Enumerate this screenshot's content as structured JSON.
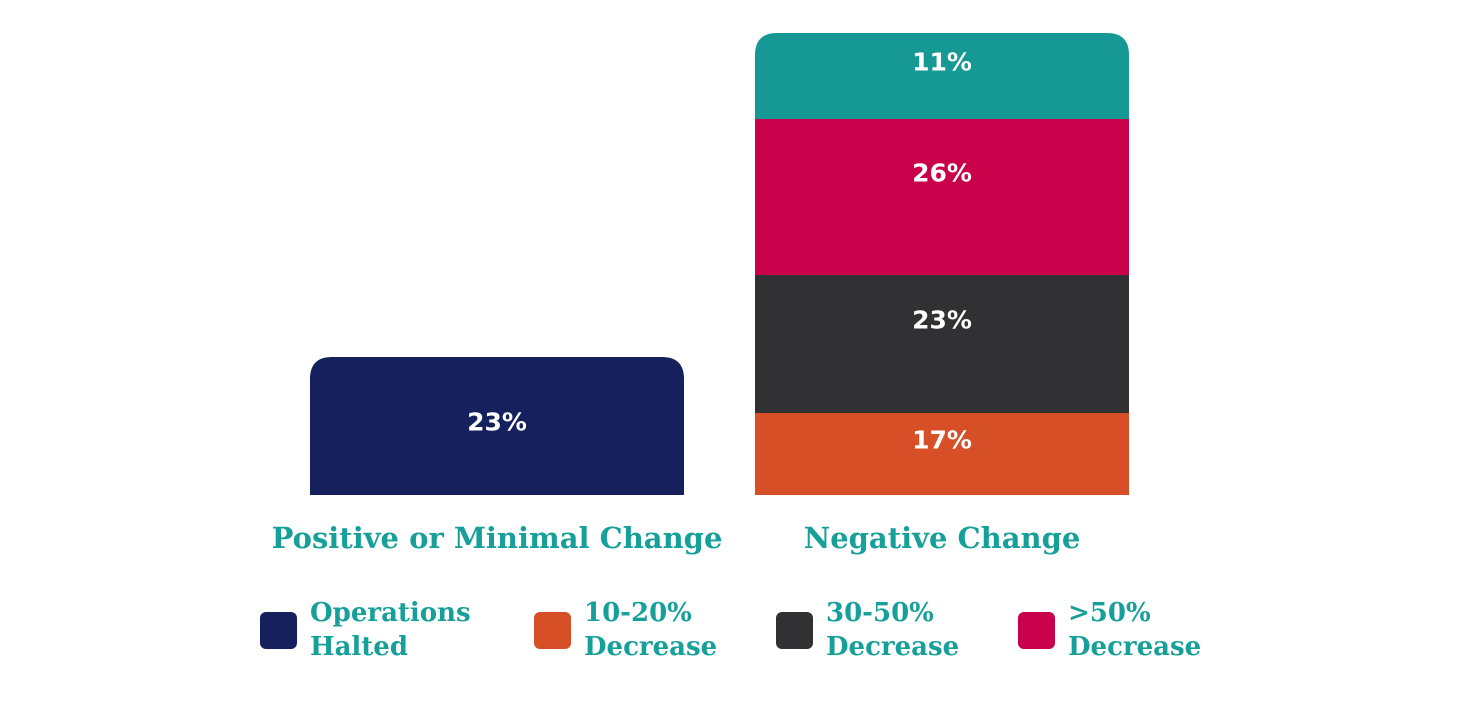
{
  "chart_data": {
    "type": "bar",
    "stacked": true,
    "categories": [
      "Positive or Minimal Change",
      "Negative Change"
    ],
    "series": [
      {
        "name": "Operations Halted",
        "color": "#15205c",
        "values": [
          23,
          null
        ],
        "labels": [
          "23%",
          ""
        ]
      },
      {
        "name": "10-20% Decrease",
        "color": "#d64f26",
        "values": [
          null,
          17
        ],
        "labels": [
          "",
          "17%"
        ]
      },
      {
        "name": "30-50% Decrease",
        "color": "#313133",
        "values": [
          null,
          23
        ],
        "labels": [
          "",
          "23%"
        ]
      },
      {
        "name": ">50% Decrease",
        "color": "#c9014a",
        "values": [
          null,
          26
        ],
        "labels": [
          "",
          "26%"
        ]
      },
      {
        "name": "",
        "color": "#169994",
        "values": [
          null,
          11
        ],
        "labels": [
          "",
          "11%"
        ]
      }
    ],
    "legend": [
      {
        "lines": [
          "Operations",
          "Halted"
        ],
        "color": "#15205c"
      },
      {
        "lines": [
          "10-20%",
          "Decrease"
        ],
        "color": "#d64f26"
      },
      {
        "lines": [
          "30-50%",
          "Decrease"
        ],
        "color": "#313133"
      },
      {
        "lines": [
          ">50%",
          "Decrease"
        ],
        "color": "#c9014a"
      }
    ],
    "legend_position": "bottom",
    "label_color": "#17a09a",
    "grid": false
  }
}
